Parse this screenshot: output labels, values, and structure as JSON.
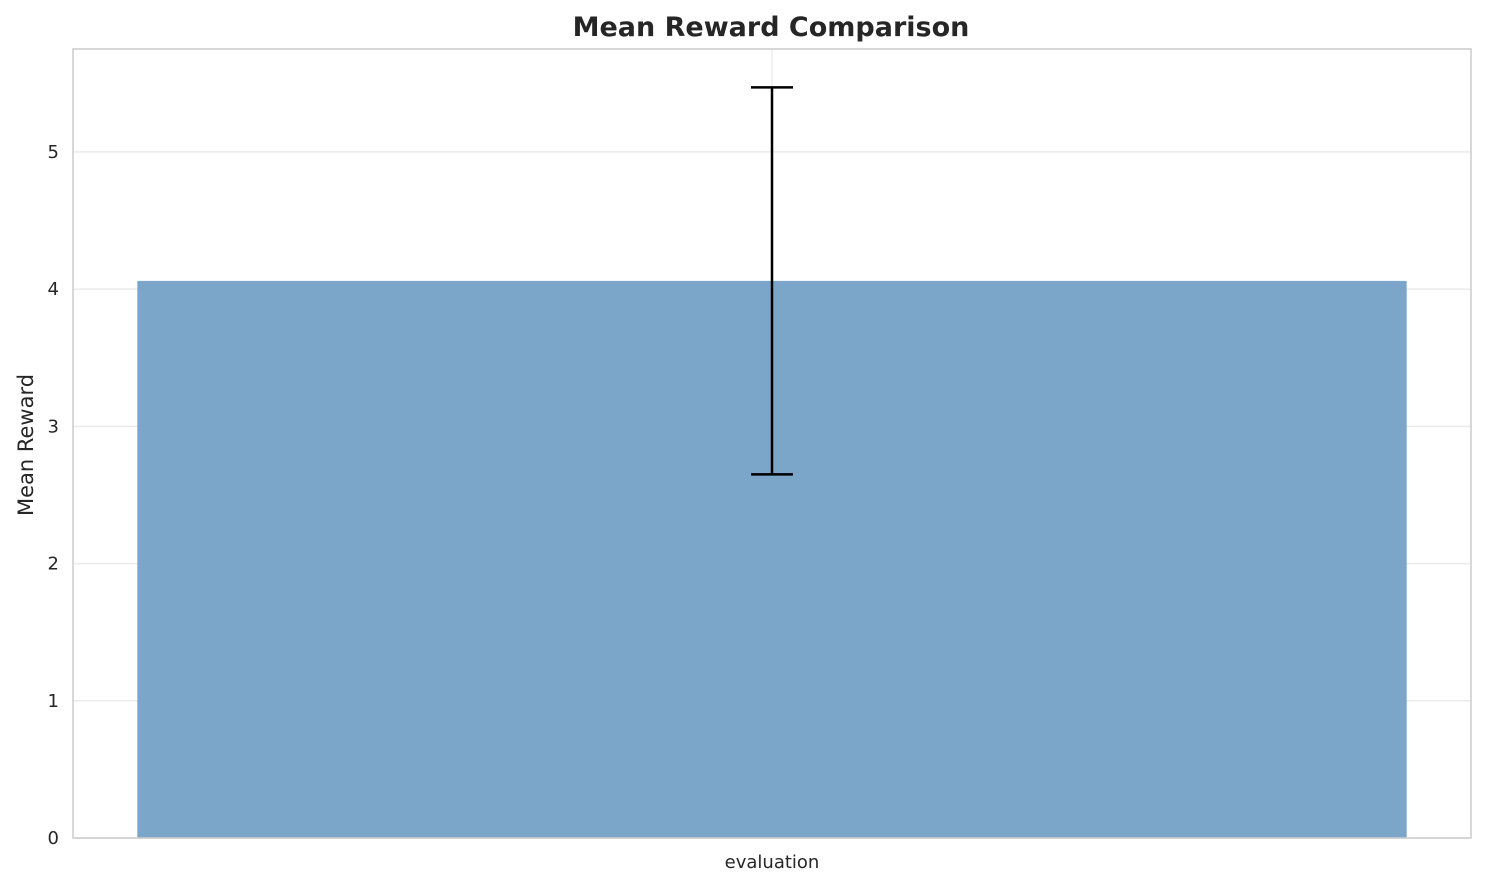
{
  "chart_data": {
    "type": "bar",
    "title": "Mean Reward Comparison",
    "xlabel": "",
    "ylabel": "Mean Reward",
    "categories": [
      "evaluation"
    ],
    "values": [
      4.06
    ],
    "error": [
      1.41
    ],
    "ylim": [
      0,
      5.75
    ],
    "yticks": [
      0,
      1,
      2,
      3,
      4,
      5
    ],
    "grid": true,
    "bar_color": "#7ba6ca",
    "error_color": "#000000",
    "grid_color": "#ebebeb",
    "spine_color": "#cccccc"
  }
}
